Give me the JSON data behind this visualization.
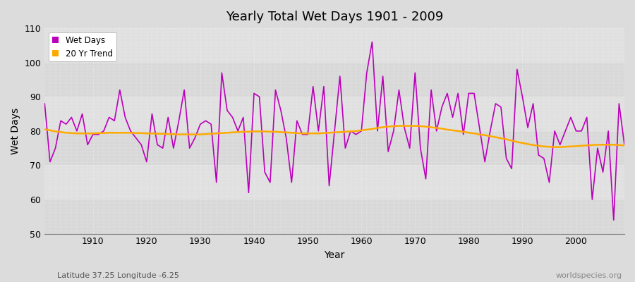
{
  "title": "Yearly Total Wet Days 1901 - 2009",
  "xlabel": "Year",
  "ylabel": "Wet Days",
  "footnote_left": "Latitude 37.25 Longitude -6.25",
  "footnote_right": "worldspecies.org",
  "wet_days_color": "#bb00bb",
  "trend_color": "#ffaa00",
  "bg_color": "#dcdcdc",
  "bg_band_light": "#e0e0e0",
  "bg_band_dark": "#d0d0d0",
  "ylim": [
    50,
    110
  ],
  "xlim": [
    1901,
    2009
  ],
  "yticks": [
    50,
    60,
    70,
    80,
    90,
    100,
    110
  ],
  "xticks": [
    1910,
    1920,
    1930,
    1940,
    1950,
    1960,
    1970,
    1980,
    1990,
    2000
  ],
  "years": [
    1901,
    1902,
    1903,
    1904,
    1905,
    1906,
    1907,
    1908,
    1909,
    1910,
    1911,
    1912,
    1913,
    1914,
    1915,
    1916,
    1917,
    1918,
    1919,
    1920,
    1921,
    1922,
    1923,
    1924,
    1925,
    1926,
    1927,
    1928,
    1929,
    1930,
    1931,
    1932,
    1933,
    1934,
    1935,
    1936,
    1937,
    1938,
    1939,
    1940,
    1941,
    1942,
    1943,
    1944,
    1945,
    1946,
    1947,
    1948,
    1949,
    1950,
    1951,
    1952,
    1953,
    1954,
    1955,
    1956,
    1957,
    1958,
    1959,
    1960,
    1961,
    1962,
    1963,
    1964,
    1965,
    1966,
    1967,
    1968,
    1969,
    1970,
    1971,
    1972,
    1973,
    1974,
    1975,
    1976,
    1977,
    1978,
    1979,
    1980,
    1981,
    1982,
    1983,
    1984,
    1985,
    1986,
    1987,
    1988,
    1989,
    1990,
    1991,
    1992,
    1993,
    1994,
    1995,
    1996,
    1997,
    1998,
    1999,
    2000,
    2001,
    2002,
    2003,
    2004,
    2005,
    2006,
    2007,
    2008,
    2009
  ],
  "wet_days": [
    88,
    71,
    75,
    83,
    82,
    84,
    80,
    85,
    76,
    79,
    79,
    80,
    84,
    83,
    92,
    84,
    80,
    78,
    76,
    71,
    85,
    76,
    75,
    84,
    75,
    83,
    92,
    75,
    78,
    82,
    83,
    82,
    65,
    97,
    86,
    84,
    80,
    84,
    62,
    91,
    90,
    68,
    65,
    92,
    86,
    78,
    65,
    83,
    79,
    79,
    93,
    80,
    93,
    64,
    80,
    96,
    75,
    80,
    79,
    80,
    97,
    106,
    80,
    96,
    74,
    80,
    92,
    81,
    75,
    97,
    75,
    66,
    92,
    80,
    87,
    91,
    84,
    91,
    79,
    91,
    91,
    81,
    71,
    80,
    88,
    87,
    72,
    69,
    98,
    90,
    81,
    88,
    73,
    72,
    65,
    80,
    76,
    80,
    84,
    80,
    80,
    84,
    60,
    75,
    68,
    80,
    54,
    88,
    76
  ],
  "trend": [
    80.5,
    80.2,
    79.9,
    79.7,
    79.5,
    79.4,
    79.3,
    79.3,
    79.3,
    79.3,
    79.4,
    79.4,
    79.5,
    79.5,
    79.5,
    79.5,
    79.5,
    79.4,
    79.4,
    79.3,
    79.3,
    79.2,
    79.2,
    79.1,
    79.1,
    79.0,
    79.0,
    79.0,
    79.0,
    79.0,
    79.1,
    79.2,
    79.3,
    79.4,
    79.5,
    79.6,
    79.7,
    79.8,
    79.8,
    79.9,
    79.9,
    79.9,
    79.8,
    79.8,
    79.7,
    79.6,
    79.5,
    79.4,
    79.3,
    79.3,
    79.3,
    79.3,
    79.4,
    79.5,
    79.6,
    79.7,
    79.8,
    79.9,
    80.0,
    80.2,
    80.4,
    80.6,
    80.9,
    81.1,
    81.3,
    81.4,
    81.5,
    81.5,
    81.5,
    81.5,
    81.4,
    81.3,
    81.1,
    80.9,
    80.7,
    80.4,
    80.2,
    80.0,
    79.8,
    79.5,
    79.3,
    79.0,
    78.8,
    78.5,
    78.2,
    77.9,
    77.6,
    77.2,
    76.8,
    76.5,
    76.2,
    75.9,
    75.7,
    75.5,
    75.4,
    75.3,
    75.3,
    75.4,
    75.5,
    75.6,
    75.7,
    75.8,
    75.9,
    76.0,
    76.0,
    76.0,
    76.0,
    75.9,
    75.8
  ]
}
